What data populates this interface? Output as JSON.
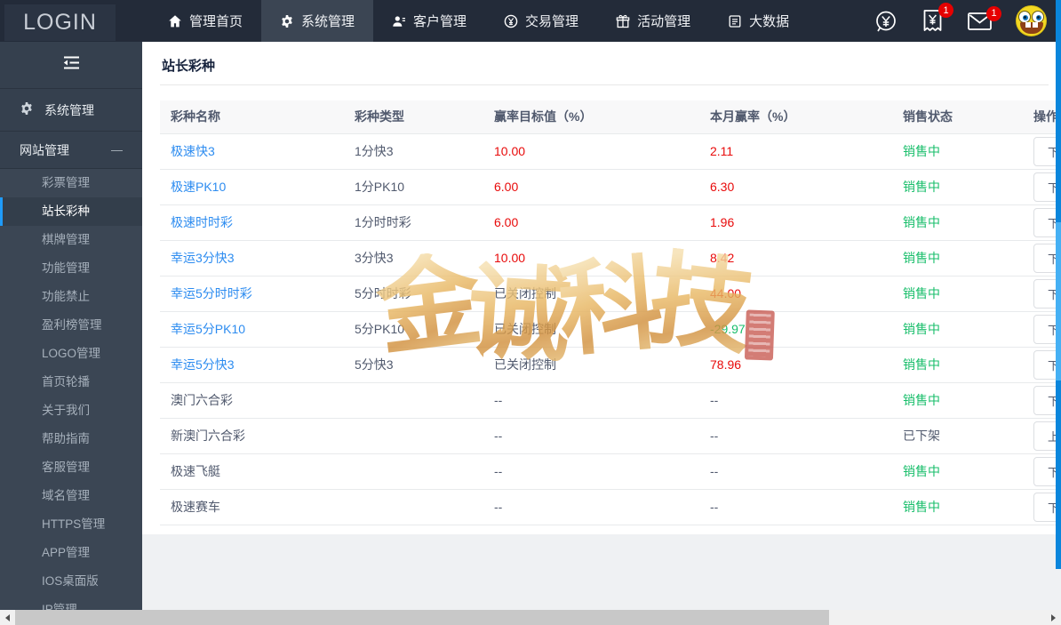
{
  "topbar": {
    "logo": "LOGIN",
    "nav": [
      {
        "id": "home",
        "label": "管理首页",
        "icon": "home-icon",
        "active": false
      },
      {
        "id": "system",
        "label": "系统管理",
        "icon": "gear-icon",
        "active": true
      },
      {
        "id": "customer",
        "label": "客户管理",
        "icon": "users-icon",
        "active": false
      },
      {
        "id": "trade",
        "label": "交易管理",
        "icon": "yen-circle-icon",
        "active": false
      },
      {
        "id": "activity",
        "label": "活动管理",
        "icon": "gift-icon",
        "active": false
      },
      {
        "id": "bigdata",
        "label": "大数据",
        "icon": "report-icon",
        "active": false
      }
    ],
    "quick_icons": [
      {
        "id": "exchange",
        "icon": "currency-exchange-icon",
        "badge": ""
      },
      {
        "id": "bill",
        "icon": "receipt-icon",
        "badge": "1"
      },
      {
        "id": "mail",
        "icon": "mail-icon",
        "badge": "1"
      }
    ],
    "avatar_icon": "spongebob-avatar"
  },
  "sidebar": {
    "collapse_icon": "collapse-menu-icon",
    "system_label": "系统管理",
    "system_icon": "gear-icon",
    "website_section": {
      "label": "网站管理",
      "state_icon": "minus-icon",
      "items": [
        {
          "id": "lottery-manage",
          "label": "彩票管理",
          "active": false
        },
        {
          "id": "webmaster-lottery",
          "label": "站长彩种",
          "active": true
        },
        {
          "id": "board-games",
          "label": "棋牌管理",
          "active": false
        },
        {
          "id": "function-manage",
          "label": "功能管理",
          "active": false
        },
        {
          "id": "function-disable",
          "label": "功能禁止",
          "active": false
        },
        {
          "id": "profit-rank",
          "label": "盈利榜管理",
          "active": false
        },
        {
          "id": "logo-manage",
          "label": "LOGO管理",
          "active": false
        },
        {
          "id": "home-carousel",
          "label": "首页轮播",
          "active": false
        },
        {
          "id": "about-us",
          "label": "关于我们",
          "active": false
        },
        {
          "id": "help-guide",
          "label": "帮助指南",
          "active": false
        },
        {
          "id": "customer-service",
          "label": "客服管理",
          "active": false
        },
        {
          "id": "domain-manage",
          "label": "域名管理",
          "active": false
        },
        {
          "id": "https-manage",
          "label": "HTTPS管理",
          "active": false
        },
        {
          "id": "app-manage",
          "label": "APP管理",
          "active": false
        },
        {
          "id": "ios-desktop",
          "label": "IOS桌面版",
          "active": false
        },
        {
          "id": "ip-manage",
          "label": "IP管理",
          "active": false
        }
      ]
    }
  },
  "page": {
    "title": "站长彩种"
  },
  "table": {
    "headers": [
      "彩种名称",
      "彩种类型",
      "赢率目标值（%）",
      "本月赢率（%）",
      "销售状态",
      "操作"
    ],
    "rows": [
      {
        "name": "极速快3",
        "link": true,
        "type": "1分快3",
        "target": "10.00",
        "target_color": "red",
        "month": "2.11",
        "month_color": "red",
        "status": "销售中",
        "status_color": "green",
        "action": "下架"
      },
      {
        "name": "极速PK10",
        "link": true,
        "type": "1分PK10",
        "target": "6.00",
        "target_color": "red",
        "month": "6.30",
        "month_color": "red",
        "status": "销售中",
        "status_color": "green",
        "action": "下架"
      },
      {
        "name": "极速时时彩",
        "link": true,
        "type": "1分时时彩",
        "target": "6.00",
        "target_color": "red",
        "month": "1.96",
        "month_color": "red",
        "status": "销售中",
        "status_color": "green",
        "action": "下架"
      },
      {
        "name": "幸运3分快3",
        "link": true,
        "type": "3分快3",
        "target": "10.00",
        "target_color": "red",
        "month": "8.42",
        "month_color": "red",
        "status": "销售中",
        "status_color": "green",
        "action": "下架"
      },
      {
        "name": "幸运5分时时彩",
        "link": true,
        "type": "5分时时彩",
        "target": "已关闭控制",
        "target_color": "default",
        "month": "44.00",
        "month_color": "red",
        "status": "销售中",
        "status_color": "green",
        "action": "下架"
      },
      {
        "name": "幸运5分PK10",
        "link": true,
        "type": "5分PK10",
        "target": "已关闭控制",
        "target_color": "default",
        "month": "-29.97",
        "month_color": "green",
        "status": "销售中",
        "status_color": "green",
        "action": "下架"
      },
      {
        "name": "幸运5分快3",
        "link": true,
        "type": "5分快3",
        "target": "已关闭控制",
        "target_color": "default",
        "month": "78.96",
        "month_color": "red",
        "status": "销售中",
        "status_color": "green",
        "action": "下架"
      },
      {
        "name": "澳门六合彩",
        "link": false,
        "type": "",
        "target": "--",
        "target_color": "default",
        "month": "--",
        "month_color": "default",
        "status": "销售中",
        "status_color": "green",
        "action": "下架"
      },
      {
        "name": "新澳门六合彩",
        "link": false,
        "type": "",
        "target": "--",
        "target_color": "default",
        "month": "--",
        "month_color": "default",
        "status": "已下架",
        "status_color": "default",
        "action": "上架"
      },
      {
        "name": "极速飞艇",
        "link": false,
        "type": "",
        "target": "--",
        "target_color": "default",
        "month": "--",
        "month_color": "default",
        "status": "销售中",
        "status_color": "green",
        "action": "下架"
      },
      {
        "name": "极速赛车",
        "link": false,
        "type": "",
        "target": "--",
        "target_color": "default",
        "month": "--",
        "month_color": "default",
        "status": "销售中",
        "status_color": "green",
        "action": "下架"
      }
    ]
  },
  "watermark": {
    "text": "金诚科技",
    "seal_icon": "red-seal-stamp"
  }
}
